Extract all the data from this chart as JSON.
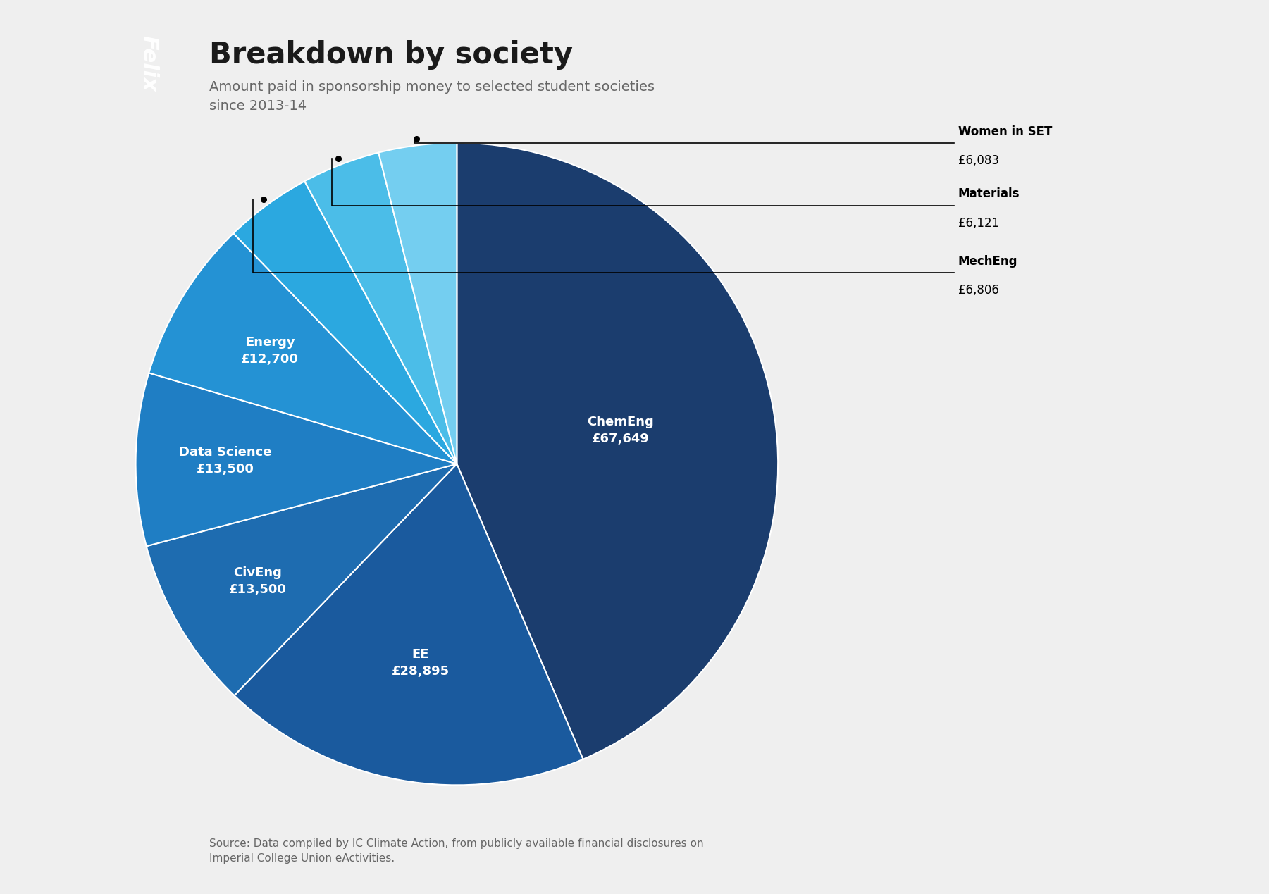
{
  "title": "Breakdown by society",
  "subtitle": "Amount paid in sponsorship money to selected student societies\nsince 2013-14",
  "source": "Source: Data compiled by IC Climate Action, from publicly available financial disclosures on\nImperial College Union eActivities.",
  "slices": [
    {
      "label": "ChemEng",
      "value": 67649,
      "color": "#1b3d6e"
    },
    {
      "label": "EE",
      "value": 28895,
      "color": "#1a5a9e"
    },
    {
      "label": "CivEng",
      "value": 13500,
      "color": "#1e6cb0"
    },
    {
      "label": "Data Science",
      "value": 13500,
      "color": "#1f7ec4"
    },
    {
      "label": "Energy",
      "value": 12700,
      "color": "#2492d4"
    },
    {
      "label": "MechEng",
      "value": 6806,
      "color": "#2ba8e0"
    },
    {
      "label": "Materials",
      "value": 6121,
      "color": "#4bbde8"
    },
    {
      "label": "Women in SET",
      "value": 6083,
      "color": "#74cef0"
    }
  ],
  "internal_labels": [
    "ChemEng",
    "EE",
    "CivEng",
    "Data Science",
    "Energy"
  ],
  "external_labels": [
    "Women in SET",
    "Materials",
    "MechEng"
  ],
  "bg_color": "#efefef",
  "felix_bg": "#999999",
  "title_color": "#1a1a1a",
  "subtitle_color": "#666666",
  "ext_label_info": {
    "Women in SET": {
      "value_str": "£6,083"
    },
    "Materials": {
      "value_str": "£6,121"
    },
    "MechEng": {
      "value_str": "£6,806"
    }
  }
}
